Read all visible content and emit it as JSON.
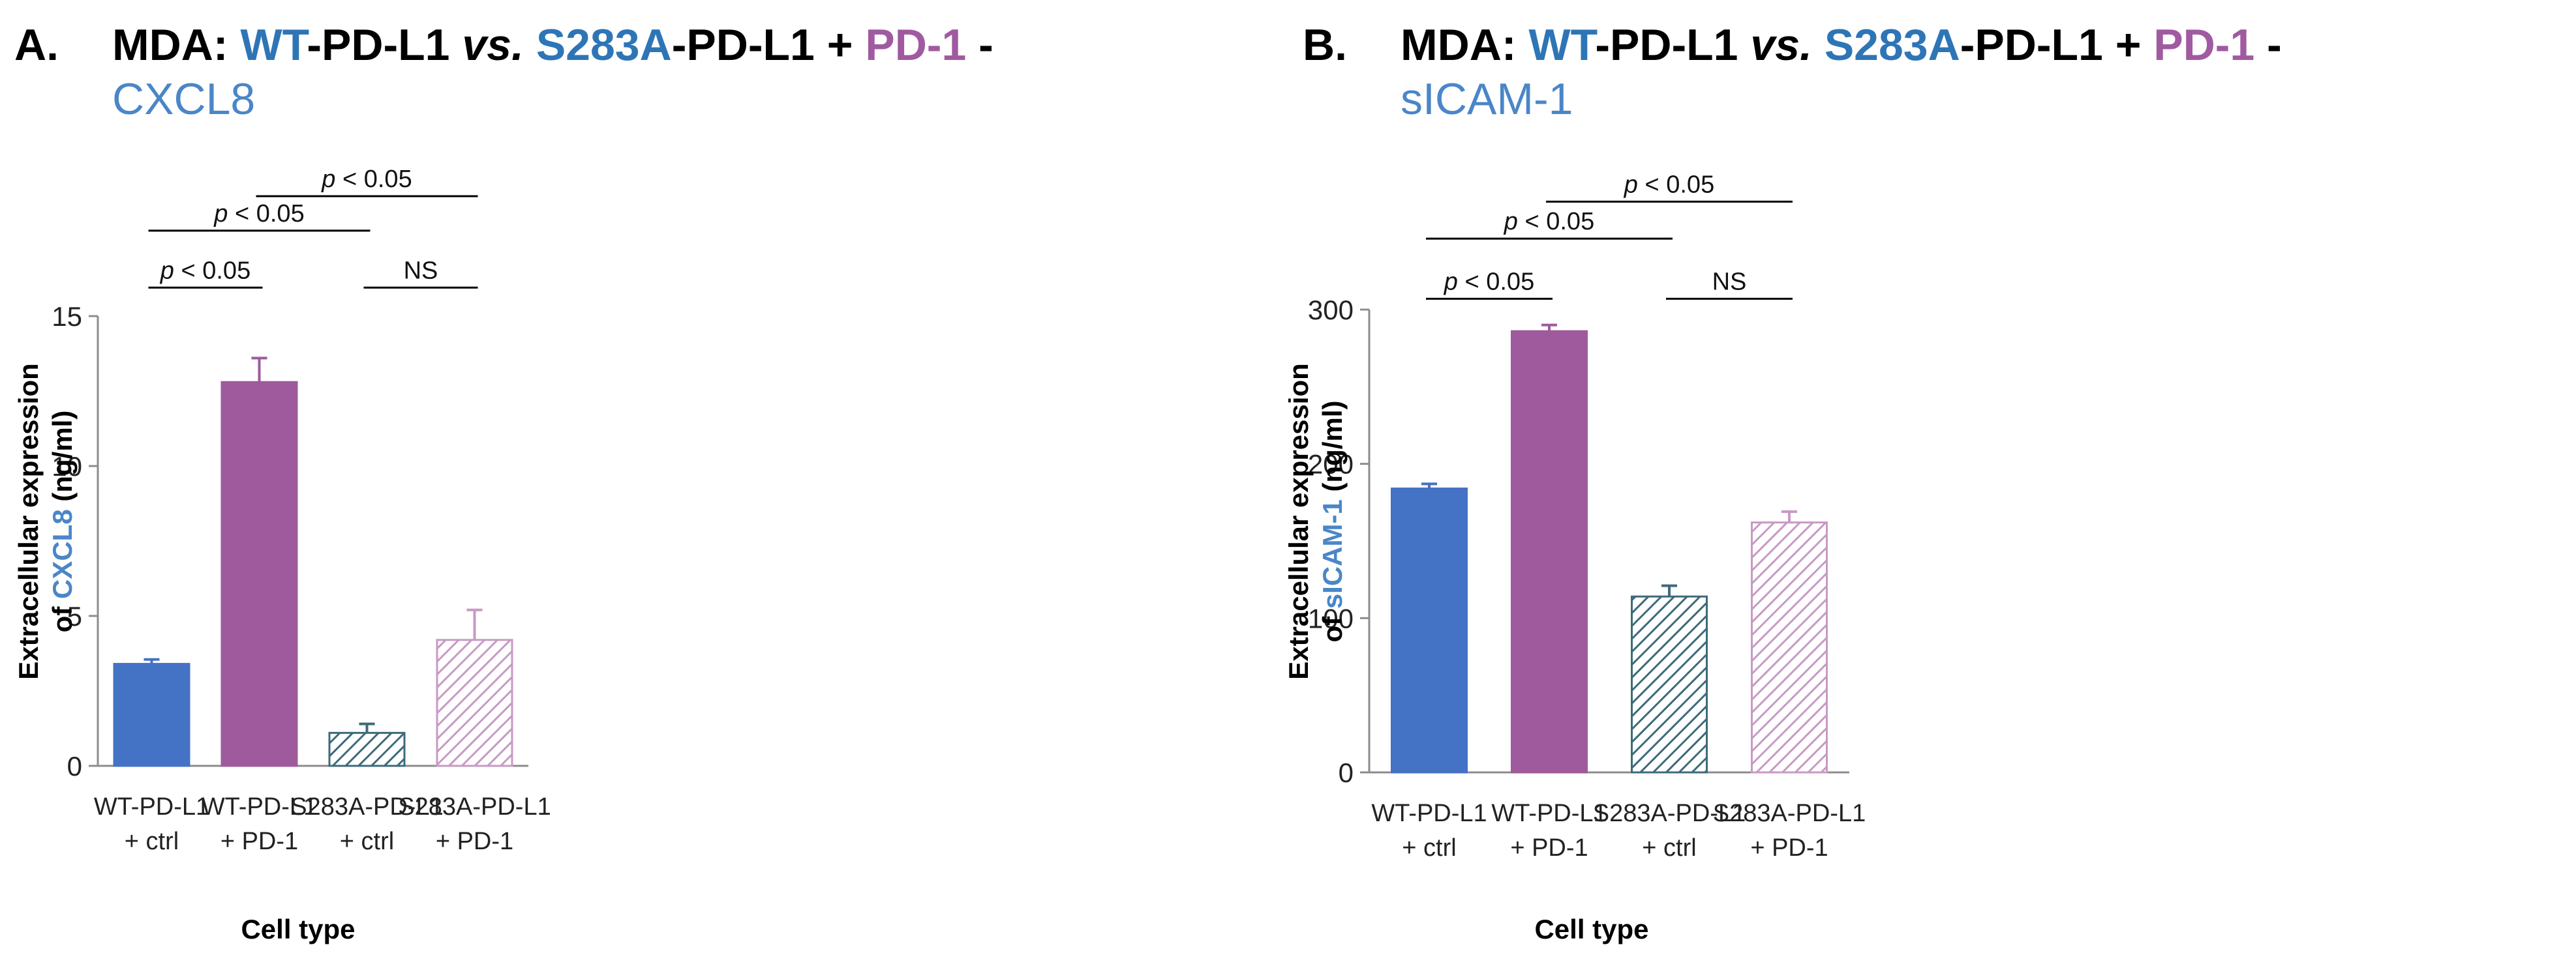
{
  "colors": {
    "wt_ctrl": "#4472c4",
    "wt_pd1": "#9e5a9c",
    "s283a_ctrl": "#3d6b7a",
    "s283a_pd1": "#c79ac4",
    "title_blue": "#2e75b6",
    "title_purple": "#a05aa0",
    "subtitle_blue": "#4a86c8"
  },
  "chart_data": [
    {
      "type": "bar",
      "panel_letter": "A.",
      "title": {
        "prefix": "MDA: ",
        "wt": "WT",
        "pdl1_a": "-PD-L1 ",
        "vs": "vs.",
        "space": " ",
        "s283a": "S283A",
        "pdl1_b": "-PD-L1 + ",
        "pd1": "PD-1",
        "dash": " -",
        "analyte": "CXCL8"
      },
      "ylabel": {
        "line1": "Extracellular expression",
        "of": "of ",
        "analyte": "CXCL8",
        "unit": " (ng/ml)"
      },
      "xlabel": "Cell type",
      "ylim": [
        0,
        15
      ],
      "yticks": [
        0,
        5,
        10,
        15
      ],
      "categories": [
        [
          "WT-PD-L1",
          "+ ctrl"
        ],
        [
          "WT-PD-L1",
          "+ PD-1"
        ],
        [
          "S283A-PD-L1",
          "+ ctrl"
        ],
        [
          "S283A-PD-L1",
          "+ PD-1"
        ]
      ],
      "values": [
        3.4,
        12.8,
        1.1,
        4.2
      ],
      "errors": [
        0.15,
        0.8,
        0.3,
        1.0
      ],
      "patterns": [
        "solid",
        "solid",
        "hatched",
        "hatched"
      ],
      "comparisons": [
        {
          "from": 0,
          "to": 1,
          "p": "p",
          "rest": " < 0.05",
          "level": 15.95
        },
        {
          "from": 2,
          "to": 3,
          "p": "",
          "rest": "NS",
          "level": 15.95
        },
        {
          "from": 0,
          "to": 2,
          "p": "p",
          "rest": " < 0.05",
          "level": 17.85
        },
        {
          "from": 1,
          "to": 3,
          "p": "p",
          "rest": " < 0.05",
          "level": 19.0
        }
      ]
    },
    {
      "type": "bar",
      "panel_letter": "B.",
      "title": {
        "prefix": "MDA: ",
        "wt": "WT",
        "pdl1_a": "-PD-L1 ",
        "vs": "vs.",
        "space": " ",
        "s283a": "S283A",
        "pdl1_b": "-PD-L1 + ",
        "pd1": "PD-1",
        "dash": " -",
        "analyte": "sICAM-1"
      },
      "ylabel": {
        "line1": "Extracellular expression",
        "of": "of ",
        "analyte": "sICAM-1",
        "unit": " (ng/ml)"
      },
      "xlabel": "Cell type",
      "ylim": [
        0,
        300
      ],
      "yticks": [
        0,
        100,
        200,
        300
      ],
      "categories": [
        [
          "WT-PD-L1",
          "+ ctrl"
        ],
        [
          "WT-PD-L1",
          "+ PD-1"
        ],
        [
          "S283A-PD-L1",
          "+ ctrl"
        ],
        [
          "S283A-PD-L1",
          "+ PD-1"
        ]
      ],
      "values": [
        184,
        286,
        114,
        162
      ],
      "errors": [
        3,
        4,
        7,
        7
      ],
      "patterns": [
        "solid",
        "solid",
        "hatched",
        "hatched"
      ],
      "comparisons": [
        {
          "from": 0,
          "to": 1,
          "p": "p",
          "rest": " < 0.05",
          "level": 307
        },
        {
          "from": 2,
          "to": 3,
          "p": "",
          "rest": "NS",
          "level": 307
        },
        {
          "from": 0,
          "to": 2,
          "p": "p",
          "rest": " < 0.05",
          "level": 346
        },
        {
          "from": 1,
          "to": 3,
          "p": "p",
          "rest": " < 0.05",
          "level": 370
        }
      ]
    }
  ]
}
